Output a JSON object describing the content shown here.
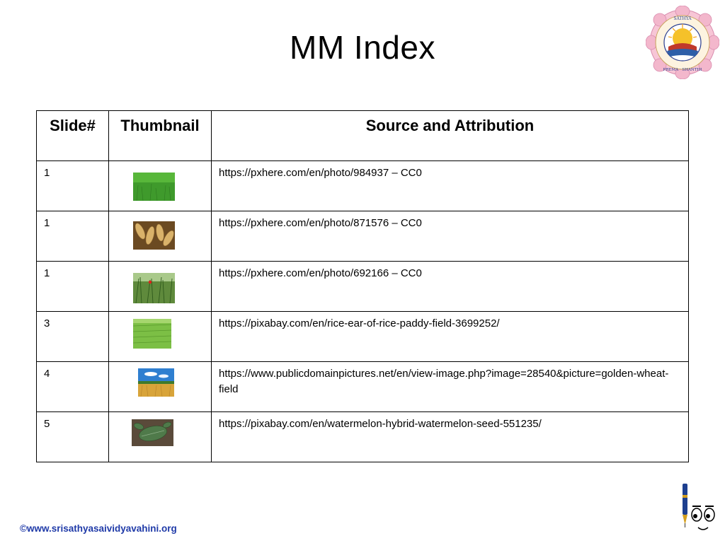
{
  "slide": {
    "title": "MM Index",
    "footer": "©www.srisathyasaividyavahini.org"
  },
  "logo": {
    "words": [
      "SATHYA",
      "DHARMA",
      "SHANTHI",
      "PREMA",
      "AHIMSA",
      "INSIGHTFUL",
      "INSPIRING",
      "ENABLING",
      "INTEGRATIVE"
    ]
  },
  "table": {
    "headers": {
      "slide": "Slide#",
      "thumbnail": "Thumbnail",
      "source": "Source and Attribution"
    },
    "rows": [
      {
        "slide": "1",
        "source": "https://pxhere.com/en/photo/984937 – CC0",
        "thumb": "green-grass"
      },
      {
        "slide": "1",
        "source": "https://pxhere.com/en/photo/871576 – CC0",
        "thumb": "wheat-ears"
      },
      {
        "slide": "1",
        "source": "https://pxhere.com/en/photo/692166 – CC0",
        "thumb": "wheat-with-poppy"
      },
      {
        "slide": "3",
        "source": "https://pixabay.com/en/rice-ear-of-rice-paddy-field-3699252/",
        "thumb": "rice-paddy"
      },
      {
        "slide": "4",
        "source": "https://www.publicdomainpictures.net/en/view-image.php?image=28540&picture=golden-wheat-field",
        "thumb": "golden-wheat-field"
      },
      {
        "slide": "5",
        "source": "https://pixabay.com/en/watermelon-hybrid-watermelon-seed-551235/",
        "thumb": "watermelon-seedling"
      }
    ]
  },
  "colors": {
    "footer": "#1f3aa8",
    "border": "#000000"
  }
}
